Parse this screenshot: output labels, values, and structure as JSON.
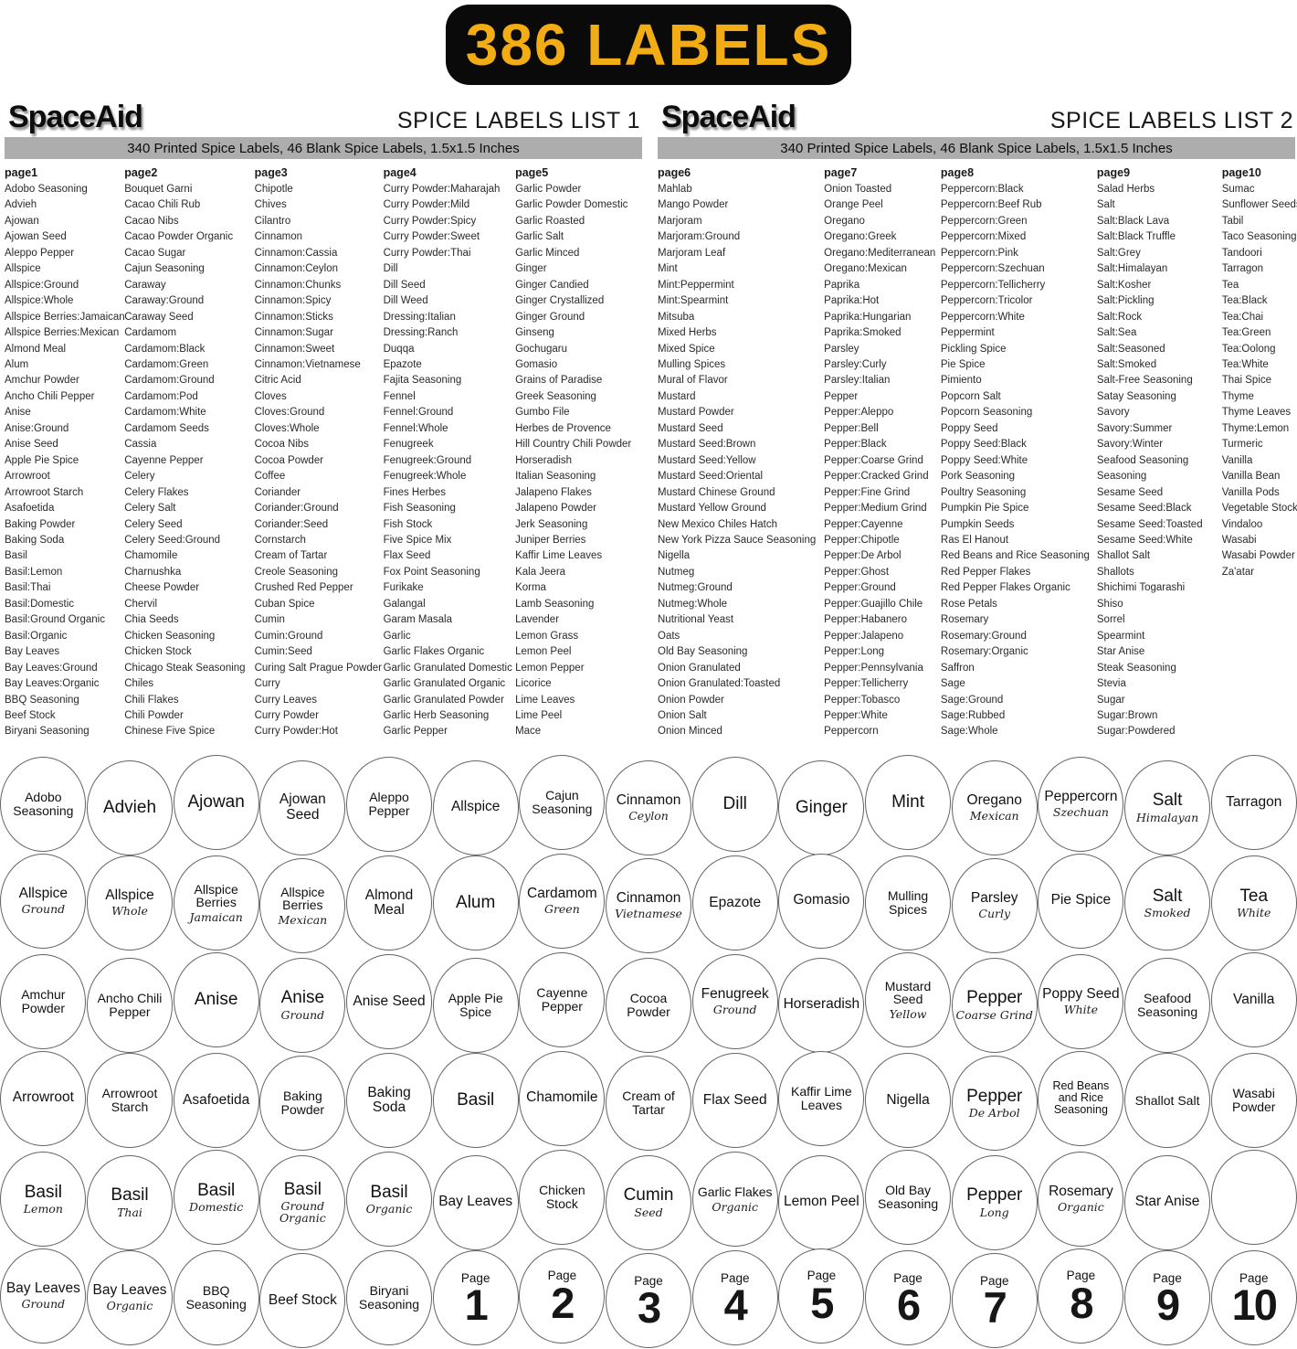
{
  "banner": {
    "text": "386 LABELS"
  },
  "colors": {
    "banner_bg": "#0a0a0a",
    "banner_text": "#f2ac14",
    "bar_bg": "#adadad"
  },
  "lists": [
    {
      "brand": "SpaceAid",
      "title": "SPICE LABELS LIST 1",
      "subtitle": "340 Printed Spice Labels, 46 Blank Spice Labels, 1.5x1.5 Inches",
      "columns": [
        {
          "header": "page1",
          "items": [
            "Adobo Seasoning",
            "Advieh",
            "Ajowan",
            "Ajowan Seed",
            "Aleppo Pepper",
            "Allspice",
            "Allspice:Ground",
            "Allspice:Whole",
            "Allspice Berries:Jamaican",
            "Allspice Berries:Mexican",
            "Almond Meal",
            "Alum",
            "Amchur Powder",
            "Ancho Chili Pepper",
            "Anise",
            "Anise:Ground",
            "Anise Seed",
            "Apple Pie Spice",
            "Arrowroot",
            "Arrowroot Starch",
            "Asafoetida",
            "Baking Powder",
            "Baking Soda",
            "Basil",
            "Basil:Lemon",
            "Basil:Thai",
            "Basil:Domestic",
            "Basil:Ground Organic",
            "Basil:Organic",
            "Bay Leaves",
            "Bay Leaves:Ground",
            "Bay Leaves:Organic",
            "BBQ Seasoning",
            "Beef Stock",
            "Biryani Seasoning"
          ]
        },
        {
          "header": "page2",
          "items": [
            "Bouquet Garni",
            "Cacao Chili Rub",
            "Cacao Nibs",
            "Cacao Powder Organic",
            "Cacao Sugar",
            "Cajun Seasoning",
            "Caraway",
            "Caraway:Ground",
            "Caraway Seed",
            "Cardamom",
            "Cardamom:Black",
            "Cardamom:Green",
            "Cardamom:Ground",
            "Cardamom:Pod",
            "Cardamom:White",
            "Cardamom Seeds",
            "Cassia",
            "Cayenne Pepper",
            "Celery",
            "Celery Flakes",
            "Celery Salt",
            "Celery Seed",
            "Celery Seed:Ground",
            "Chamomile",
            "Charnushka",
            "Cheese Powder",
            "Chervil",
            "Chia Seeds",
            "Chicken Seasoning",
            "Chicken Stock",
            "Chicago Steak Seasoning",
            "Chiles",
            "Chili Flakes",
            "Chili Powder",
            "Chinese Five Spice"
          ]
        },
        {
          "header": "page3",
          "items": [
            "Chipotle",
            "Chives",
            "Cilantro",
            "Cinnamon",
            "Cinnamon:Cassia",
            "Cinnamon:Ceylon",
            "Cinnamon:Chunks",
            "Cinnamon:Spicy",
            "Cinnamon:Sticks",
            "Cinnamon:Sugar",
            "Cinnamon:Sweet",
            "Cinnamon:Vietnamese",
            "Citric Acid",
            "Cloves",
            "Cloves:Ground",
            "Cloves:Whole",
            "Cocoa Nibs",
            "Cocoa Powder",
            "Coffee",
            "Coriander",
            "Coriander:Ground",
            "Coriander:Seed",
            "Cornstarch",
            "Cream of Tartar",
            "Creole Seasoning",
            "Crushed Red Pepper",
            "Cuban Spice",
            "Cumin",
            "Cumin:Ground",
            "Cumin:Seed",
            "Curing Salt Prague Powder",
            "Curry",
            "Curry Leaves",
            "Curry Powder",
            "Curry Powder:Hot"
          ]
        },
        {
          "header": "page4",
          "items": [
            "Curry Powder:Maharajah",
            "Curry Powder:Mild",
            "Curry Powder:Spicy",
            "Curry Powder:Sweet",
            "Curry Powder:Thai",
            "Dill",
            "Dill Seed",
            "Dill Weed",
            "Dressing:Italian",
            "Dressing:Ranch",
            "Duqqa",
            "Epazote",
            "Fajita Seasoning",
            "Fennel",
            "Fennel:Ground",
            "Fennel:Whole",
            "Fenugreek",
            "Fenugreek:Ground",
            "Fenugreek:Whole",
            "Fines Herbes",
            "Fish Seasoning",
            "Fish Stock",
            "Five Spice Mix",
            "Flax Seed",
            "Fox Point Seasoning",
            "Furikake",
            "Galangal",
            "Garam Masala",
            "Garlic",
            "Garlic Flakes Organic",
            "Garlic Granulated Domestic",
            "Garlic Granulated Organic",
            "Garlic Granulated Powder",
            "Garlic Herb Seasoning",
            "Garlic Pepper"
          ]
        },
        {
          "header": "page5",
          "items": [
            "Garlic Powder",
            "Garlic Powder Domestic",
            "Garlic Roasted",
            "Garlic Salt",
            "Garlic Minced",
            "Ginger",
            "Ginger Candied",
            "Ginger Crystallized",
            "Ginger Ground",
            "Ginseng",
            "Gochugaru",
            "Gomasio",
            "Grains of Paradise",
            "Greek Seasoning",
            "Gumbo File",
            "Herbes de Provence",
            "Hill Country Chili Powder",
            "Horseradish",
            "Italian Seasoning",
            "Jalapeno Flakes",
            "Jalapeno Powder",
            "Jerk Seasoning",
            "Juniper Berries",
            "Kaffir Lime Leaves",
            "Kala Jeera",
            "Korma",
            "Lamb Seasoning",
            "Lavender",
            "Lemon Grass",
            "Lemon Peel",
            "Lemon Pepper",
            "Licorice",
            "Lime Leaves",
            "Lime Peel",
            "Mace"
          ]
        }
      ]
    },
    {
      "brand": "SpaceAid",
      "title": "SPICE LABELS LIST 2",
      "subtitle": "340 Printed Spice Labels, 46 Blank Spice Labels, 1.5x1.5 Inches",
      "columns": [
        {
          "header": "page6",
          "items": [
            "Mahlab",
            "Mango Powder",
            "Marjoram",
            "Marjoram:Ground",
            "Marjoram Leaf",
            "Mint",
            "Mint:Peppermint",
            "Mint:Spearmint",
            "Mitsuba",
            "Mixed Herbs",
            "Mixed Spice",
            "Mulling Spices",
            "Mural of Flavor",
            "Mustard",
            "Mustard Powder",
            "Mustard Seed",
            "Mustard Seed:Brown",
            "Mustard Seed:Yellow",
            "Mustard Seed:Oriental",
            "Mustard Chinese Ground",
            "Mustard Yellow Ground",
            "New Mexico Chiles Hatch",
            "New York Pizza Sauce Seasoning",
            "Nigella",
            "Nutmeg",
            "Nutmeg:Ground",
            "Nutmeg:Whole",
            "Nutritional Yeast",
            "Oats",
            "Old Bay Seasoning",
            "Onion Granulated",
            "Onion Granulated:Toasted",
            "Onion Powder",
            "Onion Salt",
            "Onion Minced"
          ]
        },
        {
          "header": "page7",
          "items": [
            "Onion Toasted",
            "Orange Peel",
            "Oregano",
            "Oregano:Greek",
            "Oregano:Mediterranean",
            "Oregano:Mexican",
            "Paprika",
            "Paprika:Hot",
            "Paprika:Hungarian",
            "Paprika:Smoked",
            "Parsley",
            "Parsley:Curly",
            "Parsley:Italian",
            "Pepper",
            "Pepper:Aleppo",
            "Pepper:Bell",
            "Pepper:Black",
            "Pepper:Coarse Grind",
            "Pepper:Cracked Grind",
            "Pepper:Fine Grind",
            "Pepper:Medium Grind",
            "Pepper:Cayenne",
            "Pepper:Chipotle",
            "Pepper:De Arbol",
            "Pepper:Ghost",
            "Pepper:Ground",
            "Pepper:Guajillo Chile",
            "Pepper:Habanero",
            "Pepper:Jalapeno",
            "Pepper:Long",
            "Pepper:Pennsylvania",
            "Pepper:Tellicherry",
            "Pepper:Tobasco",
            "Pepper:White",
            "Peppercorn"
          ]
        },
        {
          "header": "page8",
          "items": [
            "Peppercorn:Black",
            "Peppercorn:Beef Rub",
            "Peppercorn:Green",
            "Peppercorn:Mixed",
            "Peppercorn:Pink",
            "Peppercorn:Szechuan",
            "Peppercorn:Tellicherry",
            "Peppercorn:Tricolor",
            "Peppercorn:White",
            "Peppermint",
            "Pickling Spice",
            "Pie Spice",
            "Pimiento",
            "Popcorn Salt",
            "Popcorn Seasoning",
            "Poppy Seed",
            "Poppy Seed:Black",
            "Poppy Seed:White",
            "Pork Seasoning",
            "Poultry Seasoning",
            "Pumpkin Pie Spice",
            "Pumpkin Seeds",
            "Ras El Hanout",
            "Red Beans and Rice Seasoning",
            "Red Pepper Flakes",
            "Red Pepper Flakes Organic",
            "Rose Petals",
            "Rosemary",
            "Rosemary:Ground",
            "Rosemary:Organic",
            "Saffron",
            "Sage",
            "Sage:Ground",
            "Sage:Rubbed",
            "Sage:Whole"
          ]
        },
        {
          "header": "page9",
          "items": [
            "Salad Herbs",
            "Salt",
            "Salt:Black Lava",
            "Salt:Black Truffle",
            "Salt:Grey",
            "Salt:Himalayan",
            "Salt:Kosher",
            "Salt:Pickling",
            "Salt:Rock",
            "Salt:Sea",
            "Salt:Seasoned",
            "Salt:Smoked",
            "Salt-Free Seasoning",
            "Satay Seasoning",
            "Savory",
            "Savory:Summer",
            "Savory:Winter",
            "Seafood Seasoning",
            "Seasoning",
            "Sesame Seed",
            "Sesame Seed:Black",
            "Sesame Seed:Toasted",
            "Sesame Seed:White",
            "Shallot Salt",
            "Shallots",
            "Shichimi Togarashi",
            "Shiso",
            "Sorrel",
            "Spearmint",
            "Star Anise",
            "Steak Seasoning",
            "Stevia",
            "Sugar",
            "Sugar:Brown",
            "Sugar:Powdered"
          ]
        },
        {
          "header": "page10",
          "items": [
            "Sumac",
            "Sunflower Seeds",
            "Tabil",
            "Taco Seasoning",
            "Tandoori",
            "Tarragon",
            "Tea",
            "Tea:Black",
            "Tea:Chai",
            "Tea:Green",
            "Tea:Oolong",
            "Tea:White",
            "Thai Spice",
            "Thyme",
            "Thyme Leaves",
            "Thyme:Lemon",
            "Turmeric",
            "Vanilla",
            "Vanilla Bean",
            "Vanilla Pods",
            "Vegetable Stock",
            "Vindaloo",
            "Wasabi",
            "Wasabi Powder",
            "Za'atar"
          ]
        }
      ]
    }
  ],
  "sticker_rows": [
    [
      {
        "name": "Adobo Seasoning"
      },
      {
        "name": "Advieh"
      },
      {
        "name": "Ajowan"
      },
      {
        "name": "Ajowan Seed"
      },
      {
        "name": "Aleppo Pepper"
      },
      {
        "name": "Allspice"
      },
      {
        "name": "Cajun Seasoning"
      },
      {
        "name": "Cinnamon",
        "sub": "Ceylon"
      },
      {
        "name": "Dill"
      },
      {
        "name": "Ginger"
      },
      {
        "name": "Mint"
      },
      {
        "name": "Oregano",
        "sub": "Mexican"
      },
      {
        "name": "Peppercorn",
        "sub": "Szechuan"
      },
      {
        "name": "Salt",
        "sub": "Himalayan"
      },
      {
        "name": "Tarragon"
      }
    ],
    [
      {
        "name": "Allspice",
        "sub": "Ground"
      },
      {
        "name": "Allspice",
        "sub": "Whole"
      },
      {
        "name": "Allspice Berries",
        "sub": "Jamaican"
      },
      {
        "name": "Allspice Berries",
        "sub": "Mexican"
      },
      {
        "name": "Almond Meal"
      },
      {
        "name": "Alum"
      },
      {
        "name": "Cardamom",
        "sub": "Green"
      },
      {
        "name": "Cinnamon",
        "sub": "Vietnamese"
      },
      {
        "name": "Epazote"
      },
      {
        "name": "Gomasio"
      },
      {
        "name": "Mulling Spices"
      },
      {
        "name": "Parsley",
        "sub": "Curly"
      },
      {
        "name": "Pie Spice"
      },
      {
        "name": "Salt",
        "sub": "Smoked"
      },
      {
        "name": "Tea",
        "sub": "White"
      }
    ],
    [
      {
        "name": "Amchur Powder"
      },
      {
        "name": "Ancho Chili Pepper"
      },
      {
        "name": "Anise"
      },
      {
        "name": "Anise",
        "sub": "Ground"
      },
      {
        "name": "Anise Seed"
      },
      {
        "name": "Apple Pie Spice"
      },
      {
        "name": "Cayenne Pepper"
      },
      {
        "name": "Cocoa Powder"
      },
      {
        "name": "Fenugreek",
        "sub": "Ground"
      },
      {
        "name": "Horseradish"
      },
      {
        "name": "Mustard Seed",
        "sub": "Yellow"
      },
      {
        "name": "Pepper",
        "sub": "Coarse Grind"
      },
      {
        "name": "Poppy Seed",
        "sub": "White"
      },
      {
        "name": "Seafood Seasoning"
      },
      {
        "name": "Vanilla"
      }
    ],
    [
      {
        "name": "Arrowroot"
      },
      {
        "name": "Arrowroot Starch"
      },
      {
        "name": "Asafoetida"
      },
      {
        "name": "Baking Powder"
      },
      {
        "name": "Baking Soda"
      },
      {
        "name": "Basil"
      },
      {
        "name": "Chamomile"
      },
      {
        "name": "Cream of Tartar"
      },
      {
        "name": "Flax Seed"
      },
      {
        "name": "Kaffir Lime Leaves"
      },
      {
        "name": "Nigella"
      },
      {
        "name": "Pepper",
        "sub": "De Arbol"
      },
      {
        "name": "Red Beans and Rice Seasoning"
      },
      {
        "name": "Shallot Salt"
      },
      {
        "name": "Wasabi Powder"
      }
    ],
    [
      {
        "name": "Basil",
        "sub": "Lemon"
      },
      {
        "name": "Basil",
        "sub": "Thai"
      },
      {
        "name": "Basil",
        "sub": "Domestic"
      },
      {
        "name": "Basil",
        "sub": "Ground Organic"
      },
      {
        "name": "Basil",
        "sub": "Organic"
      },
      {
        "name": "Bay Leaves"
      },
      {
        "name": "Chicken Stock"
      },
      {
        "name": "Cumin",
        "sub": "Seed"
      },
      {
        "name": "Garlic Flakes",
        "sub": "Organic"
      },
      {
        "name": "Lemon Peel"
      },
      {
        "name": "Old Bay Seasoning"
      },
      {
        "name": "Pepper",
        "sub": "Long"
      },
      {
        "name": "Rosemary",
        "sub": "Organic"
      },
      {
        "name": "Star Anise"
      },
      {
        "blank": true
      }
    ],
    [
      {
        "name": "Bay Leaves",
        "sub": "Ground"
      },
      {
        "name": "Bay Leaves",
        "sub": "Organic"
      },
      {
        "name": "BBQ Seasoning"
      },
      {
        "name": "Beef Stock"
      },
      {
        "name": "Biryani Seasoning"
      },
      {
        "page_word": "Page",
        "page_number": "1"
      },
      {
        "page_word": "Page",
        "page_number": "2"
      },
      {
        "page_word": "Page",
        "page_number": "3"
      },
      {
        "page_word": "Page",
        "page_number": "4"
      },
      {
        "page_word": "Page",
        "page_number": "5"
      },
      {
        "page_word": "Page",
        "page_number": "6"
      },
      {
        "page_word": "Page",
        "page_number": "7"
      },
      {
        "page_word": "Page",
        "page_number": "8"
      },
      {
        "page_word": "Page",
        "page_number": "9"
      },
      {
        "page_word": "Page",
        "page_number": "10"
      }
    ]
  ]
}
